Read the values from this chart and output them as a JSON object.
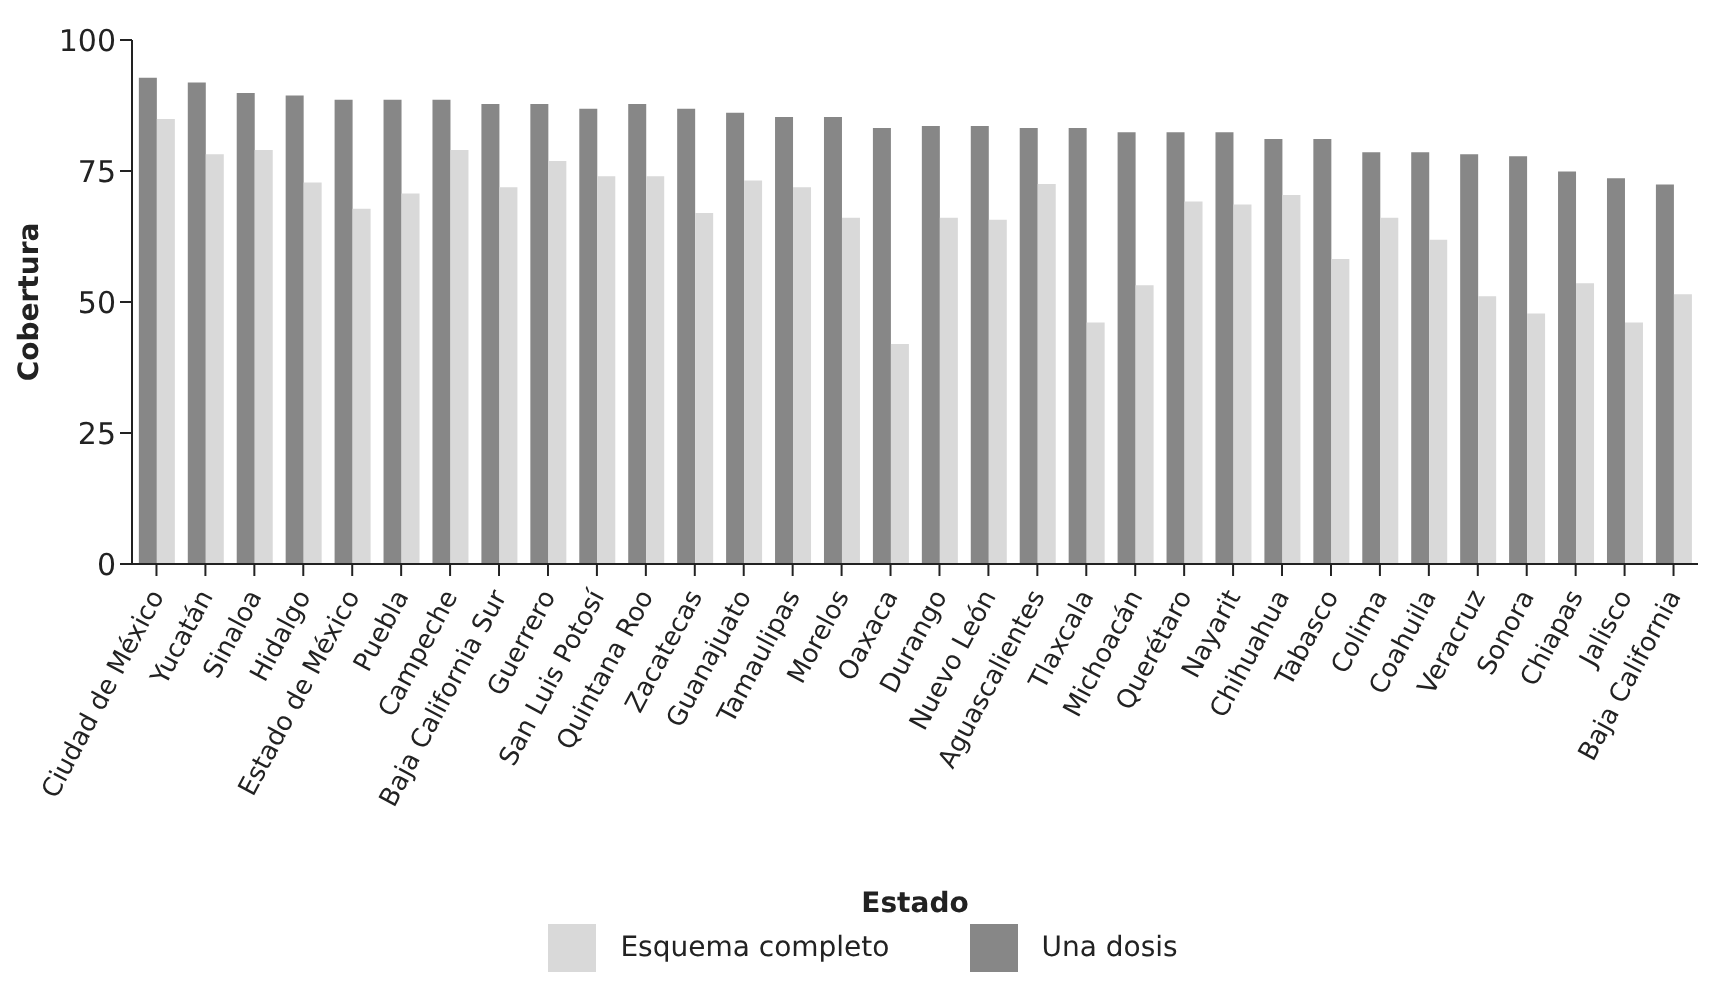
{
  "chart_data": {
    "type": "bar",
    "xlabel": "Estado",
    "ylabel": "Cobertura",
    "categories": [
      "Ciudad de México",
      "Yucatán",
      "Sinaloa",
      "Hidalgo",
      "Estado de México",
      "Puebla",
      "Campeche",
      "Baja California Sur",
      "Guerrero",
      "San Luis Potosí",
      "Quintana Roo",
      "Zacatecas",
      "Guanajuato",
      "Tamaulipas",
      "Morelos",
      "Oaxaca",
      "Durango",
      "Nuevo León",
      "Aguascalientes",
      "Tlaxcala",
      "Michoacán",
      "Querétaro",
      "Nayarit",
      "Chihuahua",
      "Tabasco",
      "Colima",
      "Coahuila",
      "Veracruz",
      "Sonora",
      "Chiapas",
      "Jalisco",
      "Baja California"
    ],
    "series": [
      {
        "name": "Esquema completo",
        "color": "#d9d9d9",
        "values": [
          84.9,
          78.2,
          79.0,
          72.8,
          67.8,
          70.7,
          79.0,
          71.9,
          76.9,
          74.0,
          74.0,
          67.0,
          73.2,
          71.9,
          66.1,
          42.0,
          66.1,
          65.7,
          72.5,
          46.1,
          53.2,
          69.2,
          68.6,
          70.4,
          58.2,
          66.1,
          61.9,
          51.1,
          47.8,
          53.6,
          46.1,
          51.5
        ]
      },
      {
        "name": "Una dosis",
        "color": "#878787",
        "values": [
          92.8,
          91.9,
          89.9,
          89.4,
          88.6,
          88.6,
          88.6,
          87.8,
          87.8,
          86.9,
          87.8,
          86.9,
          86.1,
          85.3,
          85.3,
          83.2,
          83.6,
          83.6,
          83.2,
          83.2,
          82.4,
          82.4,
          82.4,
          81.1,
          81.1,
          78.6,
          78.6,
          78.2,
          77.8,
          74.9,
          73.6,
          72.4
        ]
      }
    ],
    "ylim": [
      0,
      100
    ],
    "yticks": [
      0,
      25,
      50,
      75,
      100
    ],
    "grid": false,
    "legend": "bottom"
  }
}
